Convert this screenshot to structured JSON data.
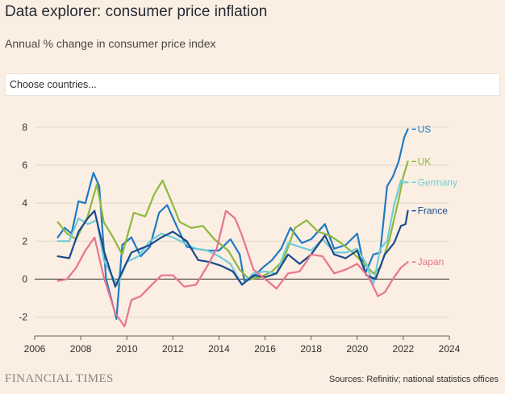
{
  "header": {
    "title": "Data explorer: consumer price inflation",
    "subtitle": "Annual % change in consumer price index"
  },
  "country_picker": {
    "placeholder": "Choose countries..."
  },
  "footer": {
    "brand": "FINANCIAL TIMES",
    "source": "Sources: Refinitiv; national statistics offices"
  },
  "chart_data": {
    "type": "line",
    "xlim": [
      2006,
      2024
    ],
    "ylim": [
      -3,
      8
    ],
    "xticks": [
      "2006",
      "2008",
      "2010",
      "2012",
      "2014",
      "2016",
      "2018",
      "2020",
      "2022",
      "2024"
    ],
    "yticks": [
      "-2",
      "0",
      "2",
      "4",
      "6",
      "8"
    ],
    "grid": "horizontal",
    "series": [
      {
        "name": "US",
        "color": "#1f7ac2",
        "x": [
          2007.0,
          2007.3,
          2007.6,
          2007.9,
          2008.2,
          2008.55,
          2008.8,
          2009.1,
          2009.4,
          2009.55,
          2009.8,
          2010.2,
          2010.6,
          2011.0,
          2011.4,
          2011.75,
          2012.2,
          2012.6,
          2013.0,
          2013.5,
          2014.0,
          2014.5,
          2014.9,
          2015.1,
          2015.4,
          2015.9,
          2016.3,
          2016.7,
          2017.1,
          2017.6,
          2018.0,
          2018.6,
          2019.0,
          2019.5,
          2020.0,
          2020.35,
          2020.7,
          2021.0,
          2021.3,
          2021.55,
          2021.8,
          2022.05,
          2022.2
        ],
        "values": [
          2.2,
          2.7,
          2.4,
          4.1,
          4.0,
          5.6,
          4.9,
          0.0,
          -1.4,
          -2.1,
          1.8,
          2.2,
          1.2,
          1.7,
          3.5,
          3.9,
          2.7,
          1.7,
          1.6,
          1.5,
          1.5,
          2.1,
          1.3,
          -0.1,
          0.0,
          0.6,
          1.0,
          1.6,
          2.7,
          1.9,
          2.1,
          2.9,
          1.6,
          1.8,
          2.4,
          0.3,
          1.3,
          1.4,
          4.9,
          5.4,
          6.2,
          7.5,
          7.9
        ]
      },
      {
        "name": "UK",
        "color": "#8db93b",
        "x": [
          2007.0,
          2007.4,
          2007.8,
          2008.3,
          2008.7,
          2009.0,
          2009.4,
          2009.8,
          2010.3,
          2010.8,
          2011.2,
          2011.55,
          2011.9,
          2012.3,
          2012.8,
          2013.3,
          2013.8,
          2014.4,
          2014.9,
          2015.3,
          2015.8,
          2016.3,
          2016.8,
          2017.3,
          2017.8,
          2018.3,
          2018.8,
          2019.3,
          2019.8,
          2020.3,
          2020.7,
          2021.0,
          2021.4,
          2021.8,
          2022.0,
          2022.2
        ],
        "values": [
          3.0,
          2.4,
          2.1,
          3.3,
          5.0,
          3.0,
          2.2,
          1.3,
          3.5,
          3.3,
          4.5,
          5.2,
          4.2,
          3.0,
          2.7,
          2.8,
          2.1,
          1.5,
          0.5,
          0.0,
          0.1,
          0.4,
          1.0,
          2.7,
          3.1,
          2.5,
          2.3,
          1.9,
          1.4,
          0.8,
          0.3,
          0.6,
          2.1,
          4.2,
          5.4,
          6.2
        ]
      },
      {
        "name": "Germany",
        "color": "#6fcdd8",
        "x": [
          2007.0,
          2007.5,
          2007.9,
          2008.3,
          2008.7,
          2009.0,
          2009.3,
          2009.6,
          2010.0,
          2010.5,
          2011.0,
          2011.5,
          2012.0,
          2012.5,
          2013.0,
          2013.5,
          2014.0,
          2014.5,
          2015.0,
          2015.5,
          2016.0,
          2016.5,
          2017.0,
          2017.5,
          2018.0,
          2018.5,
          2019.0,
          2019.5,
          2020.0,
          2020.4,
          2020.7,
          2021.0,
          2021.3,
          2021.6,
          2021.9,
          2022.0,
          2022.2
        ],
        "values": [
          2.0,
          2.0,
          3.2,
          2.9,
          3.1,
          1.0,
          0.3,
          -0.3,
          0.9,
          1.2,
          2.0,
          2.4,
          2.2,
          1.9,
          1.6,
          1.5,
          1.2,
          0.8,
          -0.3,
          0.3,
          0.4,
          0.3,
          1.9,
          1.7,
          1.5,
          2.1,
          1.4,
          1.4,
          1.6,
          0.8,
          -0.3,
          1.6,
          2.0,
          3.9,
          5.2,
          5.1,
          5.1
        ]
      },
      {
        "name": "France",
        "color": "#1a4a8c",
        "x": [
          2007.0,
          2007.5,
          2007.9,
          2008.3,
          2008.6,
          2009.0,
          2009.5,
          2009.8,
          2010.2,
          2010.6,
          2011.0,
          2011.5,
          2012.0,
          2012.6,
          2013.1,
          2013.6,
          2014.1,
          2014.6,
          2015.0,
          2015.5,
          2016.0,
          2016.5,
          2017.0,
          2017.5,
          2018.0,
          2018.6,
          2019.0,
          2019.5,
          2020.0,
          2020.4,
          2020.8,
          2021.2,
          2021.6,
          2021.9,
          2022.1,
          2022.2
        ],
        "values": [
          1.2,
          1.1,
          2.5,
          3.2,
          3.6,
          1.5,
          -0.4,
          0.4,
          1.4,
          1.6,
          1.8,
          2.2,
          2.5,
          2.0,
          1.0,
          0.9,
          0.7,
          0.4,
          -0.3,
          0.2,
          0.1,
          0.3,
          1.3,
          0.8,
          1.3,
          2.3,
          1.3,
          1.1,
          1.5,
          0.2,
          0.0,
          1.3,
          1.9,
          2.8,
          2.9,
          3.6
        ]
      },
      {
        "name": "Japan",
        "color": "#e8748e",
        "x": [
          2007.0,
          2007.4,
          2007.8,
          2008.2,
          2008.6,
          2009.0,
          2009.5,
          2009.9,
          2010.2,
          2010.6,
          2011.0,
          2011.5,
          2012.0,
          2012.5,
          2013.0,
          2013.5,
          2013.9,
          2014.3,
          2014.7,
          2015.0,
          2015.5,
          2016.0,
          2016.5,
          2017.0,
          2017.5,
          2018.0,
          2018.5,
          2019.0,
          2019.5,
          2020.0,
          2020.5,
          2020.9,
          2021.2,
          2021.6,
          2021.9,
          2022.2
        ],
        "values": [
          -0.1,
          0.0,
          0.6,
          1.5,
          2.2,
          0.1,
          -1.8,
          -2.5,
          -1.1,
          -0.9,
          -0.4,
          0.2,
          0.2,
          -0.4,
          -0.3,
          0.7,
          1.6,
          3.6,
          3.2,
          2.3,
          0.5,
          0.0,
          -0.5,
          0.3,
          0.4,
          1.3,
          1.2,
          0.3,
          0.5,
          0.8,
          0.1,
          -0.9,
          -0.7,
          0.1,
          0.6,
          0.9
        ]
      }
    ]
  }
}
